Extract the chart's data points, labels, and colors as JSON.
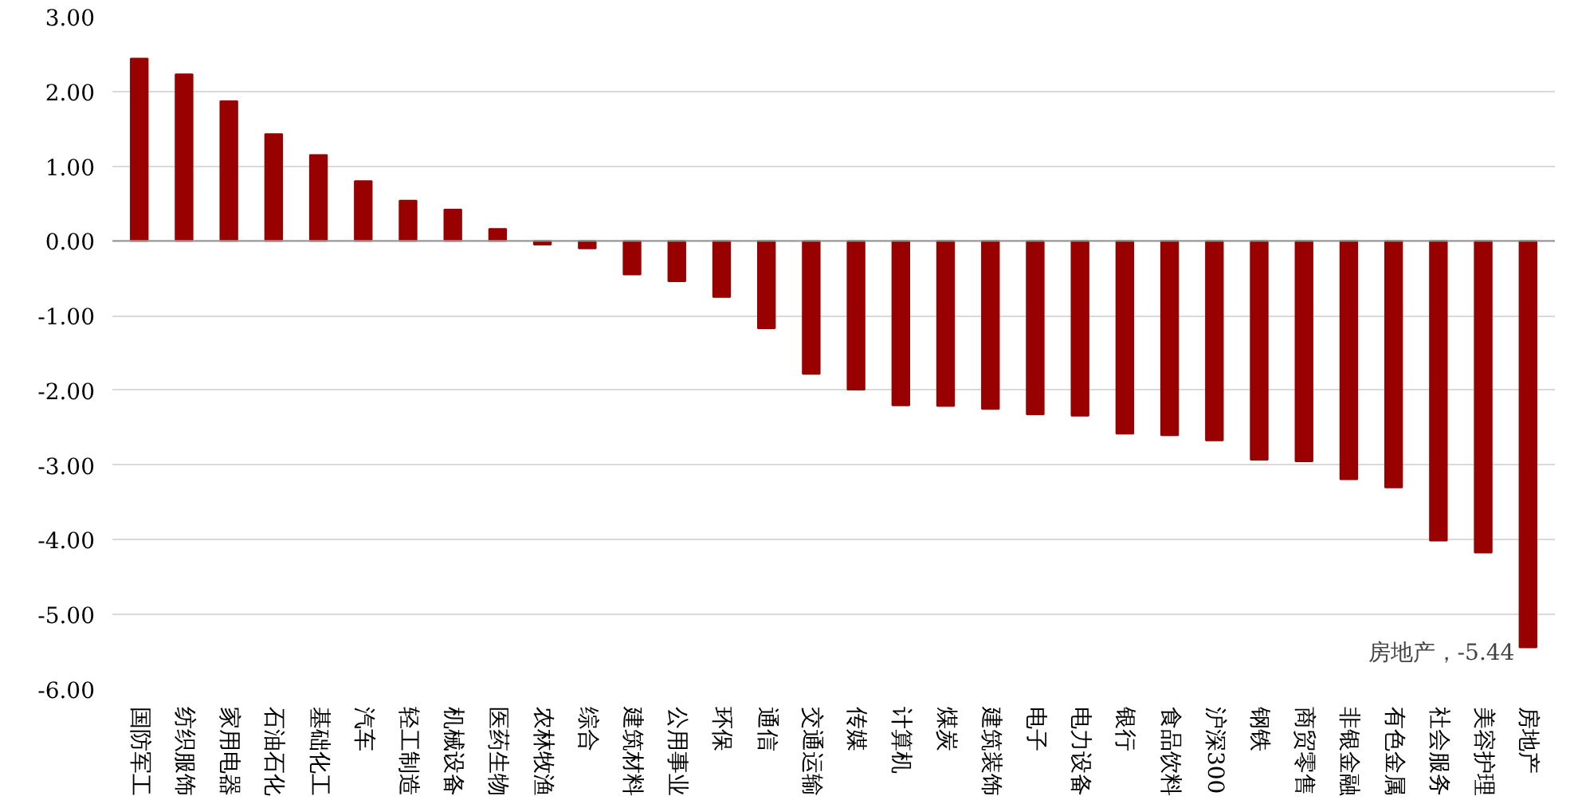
{
  "chart_data": {
    "type": "bar",
    "categories": [
      "国防军工",
      "纺织服饰",
      "家用电器",
      "石油石化",
      "基础化工",
      "汽车",
      "轻工制造",
      "机械设备",
      "医药生物",
      "农林牧渔",
      "综合",
      "建筑材料",
      "公用事业",
      "环保",
      "通信",
      "交通运输",
      "传媒",
      "计算机",
      "煤炭",
      "建筑装饰",
      "电子",
      "电力设备",
      "银行",
      "食品饮料",
      "沪深300",
      "钢铁",
      "商贸零售",
      "非银金融",
      "有色金属",
      "社会服务",
      "美容护理",
      "房地产"
    ],
    "values": [
      2.44,
      2.23,
      1.87,
      1.43,
      1.15,
      0.8,
      0.54,
      0.42,
      0.16,
      -0.05,
      -0.1,
      -0.45,
      -0.54,
      -0.75,
      -1.17,
      -1.78,
      -1.99,
      -2.2,
      -2.21,
      -2.25,
      -2.32,
      -2.34,
      -2.58,
      -2.6,
      -2.67,
      -2.93,
      -2.95,
      -3.19,
      -3.3,
      -4.01,
      -4.17,
      -5.44
    ],
    "color": "#990000",
    "ylim": [
      -6,
      3
    ],
    "yticks": [
      {
        "value": 3,
        "label": "3.00"
      },
      {
        "value": 2,
        "label": "2.00"
      },
      {
        "value": 1,
        "label": "1.00"
      },
      {
        "value": 0,
        "label": "0.00"
      },
      {
        "value": -1,
        "label": "-1.00"
      },
      {
        "value": -2,
        "label": "-2.00"
      },
      {
        "value": -3,
        "label": "-3.00"
      },
      {
        "value": -4,
        "label": "-4.00"
      },
      {
        "value": -5,
        "label": "-5.00"
      },
      {
        "value": -6,
        "label": "-6.00"
      }
    ],
    "grid": "y",
    "annotations": [
      {
        "text": "房地产，-5.44",
        "x": "房地产",
        "y": -5.44
      }
    ]
  }
}
